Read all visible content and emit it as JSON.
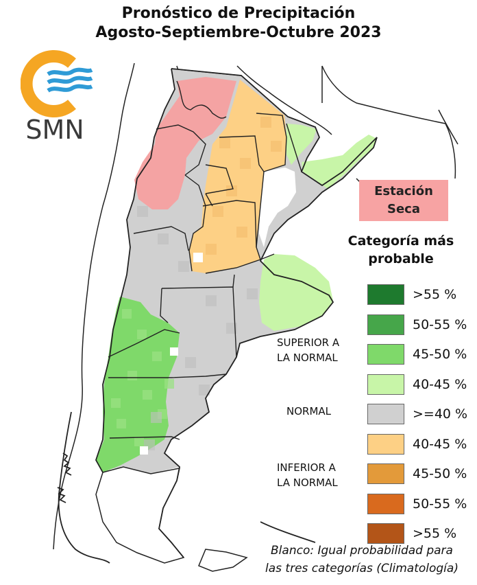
{
  "title_line1": "Pronóstico de Precipitación",
  "title_line2": "Agosto-Septiembre-Octubre 2023",
  "logo": {
    "text": "SMN",
    "ring_color": "#f5a623",
    "wave_color": "#2f9bd6"
  },
  "dry_season": {
    "line1": "Estación",
    "line2": "Seca",
    "color": "#f7a3a3"
  },
  "legend": {
    "title_line1": "Categoría más",
    "title_line2": "probable",
    "items": [
      {
        "label": ">55 %",
        "color": "#1e7a2e"
      },
      {
        "label": "50-55 %",
        "color": "#46a64a"
      },
      {
        "label": "45-50 %",
        "color": "#7fd96a"
      },
      {
        "label": "40-45 %",
        "color": "#c8f5a8"
      },
      {
        "label": ">=40 %",
        "color": "#d0d0d0"
      },
      {
        "label": "40-45 %",
        "color": "#fdd085"
      },
      {
        "label": "45-50 %",
        "color": "#e39a3a"
      },
      {
        "label": "50-55 %",
        "color": "#d96a1e"
      },
      {
        "label": ">55 %",
        "color": "#b35518"
      }
    ],
    "groups": {
      "superior_line1": "SUPERIOR A",
      "superior_line2": "LA NORMAL",
      "normal": "NORMAL",
      "inferior_line1": "INFERIOR A",
      "inferior_line2": "LA NORMAL"
    }
  },
  "note_line1": "Blanco: Igual probabilidad para",
  "note_line2": "las tres categorías (Climatología)"
}
